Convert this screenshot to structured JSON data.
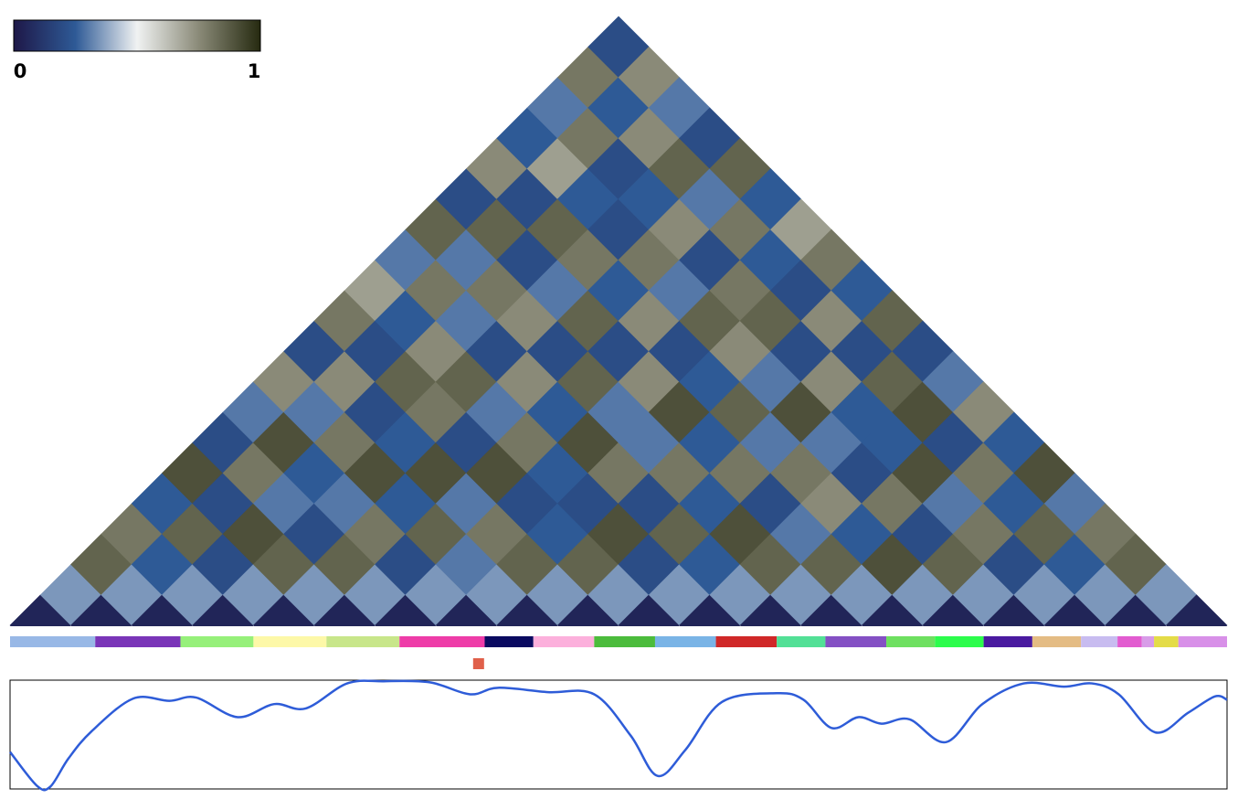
{
  "chart_data": [
    {
      "type": "heatmap-triangle",
      "clim": [
        0,
        1
      ],
      "colorbar_ticks": [
        0,
        1
      ],
      "colorscale": [
        "#1e1848",
        "#2e5a96",
        "#f0f2f2",
        "#8a8a78",
        "#262a10"
      ],
      "matrix": [
        [
          0.05,
          0.35,
          0.85,
          0.8,
          0.25,
          0.9,
          0.2,
          0.3,
          0.75,
          0.2,
          0.8,
          0.7,
          0.3,
          0.85,
          0.2,
          0.75,
          0.25,
          0.3,
          0.8,
          0.2
        ],
        [
          0.05,
          0.35,
          0.25,
          0.85,
          0.2,
          0.8,
          0.9,
          0.3,
          0.75,
          0.2,
          0.25,
          0.8,
          0.3,
          0.85,
          0.2,
          0.7,
          0.8,
          0.25,
          0.75
        ],
        [
          0.05,
          0.35,
          0.2,
          0.9,
          0.3,
          0.25,
          0.8,
          0.2,
          0.85,
          0.75,
          0.3,
          0.8,
          0.2,
          0.85,
          0.25,
          0.2,
          0.75,
          0.3
        ],
        [
          0.05,
          0.35,
          0.85,
          0.2,
          0.3,
          0.9,
          0.25,
          0.8,
          0.85,
          0.2,
          0.75,
          0.3,
          0.8,
          0.2,
          0.25,
          0.85,
          0.2
        ],
        [
          0.05,
          0.35,
          0.85,
          0.8,
          0.25,
          0.9,
          0.2,
          0.3,
          0.75,
          0.2,
          0.85,
          0.25,
          0.8,
          0.75,
          0.3,
          0.85
        ],
        [
          0.05,
          0.35,
          0.2,
          0.85,
          0.3,
          0.9,
          0.8,
          0.25,
          0.85,
          0.2,
          0.75,
          0.3,
          0.2,
          0.8,
          0.25
        ],
        [
          0.05,
          0.35,
          0.3,
          0.8,
          0.2,
          0.25,
          0.9,
          0.3,
          0.75,
          0.2,
          0.85,
          0.8,
          0.25,
          0.7
        ],
        [
          0.05,
          0.35,
          0.85,
          0.25,
          0.2,
          0.8,
          0.3,
          0.9,
          0.25,
          0.75,
          0.85,
          0.2,
          0.8
        ],
        [
          0.05,
          0.35,
          0.85,
          0.9,
          0.2,
          0.8,
          0.25,
          0.85,
          0.3,
          0.2,
          0.75,
          0.25
        ],
        [
          0.05,
          0.35,
          0.2,
          0.85,
          0.25,
          0.8,
          0.3,
          0.9,
          0.75,
          0.2,
          0.85
        ],
        [
          0.05,
          0.35,
          0.25,
          0.9,
          0.2,
          0.8,
          0.3,
          0.25,
          0.85,
          0.2
        ],
        [
          0.05,
          0.35,
          0.85,
          0.3,
          0.75,
          0.2,
          0.25,
          0.9,
          0.3
        ],
        [
          0.05,
          0.35,
          0.85,
          0.25,
          0.8,
          0.9,
          0.2,
          0.75
        ],
        [
          0.05,
          0.35,
          0.9,
          0.2,
          0.3,
          0.8,
          0.25
        ],
        [
          0.05,
          0.35,
          0.85,
          0.8,
          0.25,
          0.9
        ],
        [
          0.05,
          0.35,
          0.2,
          0.85,
          0.3
        ],
        [
          0.05,
          0.35,
          0.25,
          0.8
        ],
        [
          0.05,
          0.35,
          0.85
        ],
        [
          0.05,
          0.35
        ],
        [
          0.05
        ]
      ]
    },
    {
      "type": "segments",
      "xlim": [
        0,
        100
      ],
      "boundaries": [
        0,
        7,
        14,
        20,
        26,
        32,
        39,
        43,
        48,
        53,
        58,
        63,
        67,
        72,
        76,
        80,
        84,
        88,
        91,
        93,
        94,
        96,
        100
      ],
      "colors": [
        "#98b8e6",
        "#7a35b8",
        "#96f07a",
        "#fdf8a8",
        "#c8e68a",
        "#ee3ca8",
        "#0a0a60",
        "#fcb0dc",
        "#4cbc3c",
        "#7ab4e6",
        "#d02828",
        "#52e096",
        "#8450c4",
        "#6ee060",
        "#2cfc4c",
        "#4a1aa0",
        "#e4bc84",
        "#c8bcf0",
        "#e25cd0",
        "#d89ce8",
        "#e4dc48",
        "#d890e8"
      ],
      "marker": {
        "x": 38.5,
        "color": "#e0604a"
      }
    },
    {
      "type": "line",
      "xlim": [
        0,
        100
      ],
      "ylim": [
        0,
        1
      ],
      "color": "#2e5cd8",
      "x": [
        0,
        2.2,
        3.3,
        4.8,
        6.7,
        10.1,
        13.1,
        15.3,
        18.7,
        21.7,
        24.3,
        27.7,
        30.7,
        34.5,
        37.8,
        40.1,
        44.2,
        48,
        51,
        53.2,
        55.5,
        58.5,
        63,
        65.2,
        67.5,
        69.7,
        71.6,
        73.9,
        76.9,
        79.9,
        83.3,
        86.6,
        88.9,
        91.1,
        94.1,
        96.8,
        99,
        100
      ],
      "values": [
        0.34,
        0.03,
        0.02,
        0.28,
        0.53,
        0.83,
        0.81,
        0.84,
        0.66,
        0.78,
        0.74,
        0.97,
        0.99,
        0.98,
        0.87,
        0.93,
        0.89,
        0.87,
        0.49,
        0.12,
        0.36,
        0.8,
        0.88,
        0.82,
        0.56,
        0.66,
        0.6,
        0.64,
        0.43,
        0.78,
        0.97,
        0.94,
        0.97,
        0.87,
        0.52,
        0.7,
        0.85,
        0.82
      ]
    }
  ]
}
